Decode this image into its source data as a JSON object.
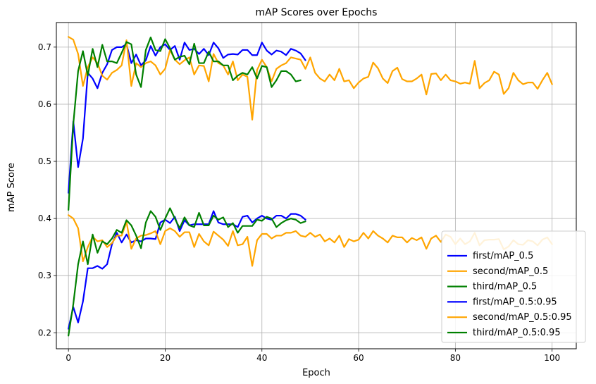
{
  "chart_data": {
    "type": "line",
    "title": "mAP Scores over Epochs",
    "xlabel": "Epoch",
    "ylabel": "mAP Score",
    "xlim": [
      -2.5,
      105
    ],
    "ylim": [
      0.172,
      0.743
    ],
    "xticks": [
      0,
      20,
      40,
      60,
      80,
      100
    ],
    "yticks": [
      0.2,
      0.3,
      0.4,
      0.5,
      0.6,
      0.7
    ],
    "ytick_labels": [
      "0.2",
      "0.3",
      "0.4",
      "0.5",
      "0.6",
      "0.7"
    ],
    "grid": true,
    "legend_position": "lower-right",
    "series": [
      {
        "name": "first/mAP_0.5",
        "color": "#0000ff",
        "x_start": 0,
        "values": [
          0.445,
          0.57,
          0.49,
          0.54,
          0.655,
          0.645,
          0.628,
          0.655,
          0.67,
          0.695,
          0.7,
          0.7,
          0.705,
          0.672,
          0.687,
          0.668,
          0.677,
          0.702,
          0.685,
          0.7,
          0.705,
          0.695,
          0.702,
          0.678,
          0.708,
          0.695,
          0.697,
          0.688,
          0.697,
          0.686,
          0.708,
          0.698,
          0.681,
          0.687,
          0.688,
          0.687,
          0.695,
          0.695,
          0.686,
          0.686,
          0.708,
          0.694,
          0.687,
          0.694,
          0.692,
          0.686,
          0.697,
          0.694,
          0.689,
          0.677
        ]
      },
      {
        "name": "second/mAP_0.5",
        "color": "#ffa500",
        "x_start": 0,
        "values": [
          0.718,
          0.713,
          0.688,
          0.632,
          0.665,
          0.682,
          0.672,
          0.65,
          0.643,
          0.655,
          0.66,
          0.668,
          0.712,
          0.632,
          0.672,
          0.665,
          0.672,
          0.675,
          0.668,
          0.652,
          0.662,
          0.695,
          0.678,
          0.67,
          0.677,
          0.682,
          0.652,
          0.668,
          0.667,
          0.64,
          0.688,
          0.672,
          0.668,
          0.652,
          0.675,
          0.642,
          0.652,
          0.648,
          0.573,
          0.66,
          0.678,
          0.665,
          0.64,
          0.662,
          0.668,
          0.672,
          0.682,
          0.68,
          0.678,
          0.662,
          0.682,
          0.655,
          0.645,
          0.64,
          0.652,
          0.642,
          0.662,
          0.64,
          0.642,
          0.628,
          0.638,
          0.645,
          0.648,
          0.673,
          0.663,
          0.645,
          0.637,
          0.658,
          0.664,
          0.644,
          0.64,
          0.64,
          0.645,
          0.652,
          0.617,
          0.653,
          0.654,
          0.642,
          0.652,
          0.642,
          0.64,
          0.636,
          0.638,
          0.636,
          0.676,
          0.628,
          0.637,
          0.642,
          0.657,
          0.652,
          0.618,
          0.628,
          0.655,
          0.642,
          0.635,
          0.638,
          0.638,
          0.627,
          0.642,
          0.655,
          0.635
        ]
      },
      {
        "name": "third/mAP_0.5",
        "color": "#008000",
        "x_start": 0,
        "values": [
          0.415,
          0.565,
          0.658,
          0.693,
          0.65,
          0.697,
          0.665,
          0.704,
          0.675,
          0.675,
          0.672,
          0.69,
          0.709,
          0.705,
          0.652,
          0.63,
          0.695,
          0.717,
          0.695,
          0.693,
          0.714,
          0.698,
          0.678,
          0.683,
          0.685,
          0.67,
          0.706,
          0.672,
          0.672,
          0.692,
          0.675,
          0.675,
          0.668,
          0.668,
          0.642,
          0.65,
          0.655,
          0.652,
          0.665,
          0.645,
          0.667,
          0.665,
          0.63,
          0.642,
          0.658,
          0.658,
          0.652,
          0.64,
          0.642
        ]
      },
      {
        "name": "first/mAP_0.5:0.95",
        "color": "#0000ff",
        "x_start": 0,
        "values": [
          0.207,
          0.245,
          0.218,
          0.255,
          0.313,
          0.313,
          0.317,
          0.312,
          0.32,
          0.355,
          0.375,
          0.358,
          0.372,
          0.358,
          0.362,
          0.36,
          0.365,
          0.365,
          0.364,
          0.393,
          0.398,
          0.392,
          0.403,
          0.378,
          0.397,
          0.388,
          0.39,
          0.39,
          0.39,
          0.39,
          0.413,
          0.393,
          0.39,
          0.39,
          0.39,
          0.385,
          0.403,
          0.405,
          0.393,
          0.4,
          0.405,
          0.4,
          0.398,
          0.405,
          0.405,
          0.4,
          0.408,
          0.408,
          0.405,
          0.398
        ]
      },
      {
        "name": "second/mAP_0.5:0.95",
        "color": "#ffa500",
        "x_start": 0,
        "values": [
          0.406,
          0.4,
          0.383,
          0.325,
          0.35,
          0.368,
          0.36,
          0.362,
          0.35,
          0.357,
          0.37,
          0.37,
          0.394,
          0.347,
          0.365,
          0.37,
          0.371,
          0.374,
          0.378,
          0.355,
          0.378,
          0.383,
          0.378,
          0.368,
          0.376,
          0.376,
          0.35,
          0.373,
          0.36,
          0.353,
          0.377,
          0.37,
          0.363,
          0.352,
          0.378,
          0.353,
          0.355,
          0.368,
          0.317,
          0.362,
          0.373,
          0.373,
          0.365,
          0.37,
          0.37,
          0.375,
          0.375,
          0.378,
          0.37,
          0.368,
          0.375,
          0.368,
          0.372,
          0.36,
          0.365,
          0.358,
          0.37,
          0.35,
          0.364,
          0.36,
          0.363,
          0.375,
          0.365,
          0.378,
          0.37,
          0.365,
          0.358,
          0.37,
          0.367,
          0.367,
          0.358,
          0.366,
          0.362,
          0.367,
          0.347,
          0.365,
          0.37,
          0.359,
          0.372,
          0.368,
          0.355,
          0.365,
          0.355,
          0.36,
          0.375,
          0.353,
          0.362,
          0.363,
          0.363,
          0.364,
          0.346,
          0.351,
          0.362,
          0.355,
          0.354,
          0.362,
          0.36,
          0.353,
          0.363,
          0.367,
          0.355
        ]
      },
      {
        "name": "third/mAP_0.5:0.95",
        "color": "#008000",
        "x_start": 0,
        "values": [
          0.195,
          0.25,
          0.32,
          0.36,
          0.32,
          0.372,
          0.34,
          0.36,
          0.355,
          0.365,
          0.38,
          0.375,
          0.397,
          0.388,
          0.37,
          0.348,
          0.393,
          0.413,
          0.403,
          0.38,
          0.4,
          0.418,
          0.4,
          0.383,
          0.402,
          0.388,
          0.385,
          0.41,
          0.388,
          0.388,
          0.405,
          0.398,
          0.402,
          0.385,
          0.392,
          0.375,
          0.387,
          0.387,
          0.387,
          0.398,
          0.396,
          0.403,
          0.4,
          0.385,
          0.392,
          0.397,
          0.4,
          0.398,
          0.392,
          0.395
        ]
      }
    ]
  }
}
